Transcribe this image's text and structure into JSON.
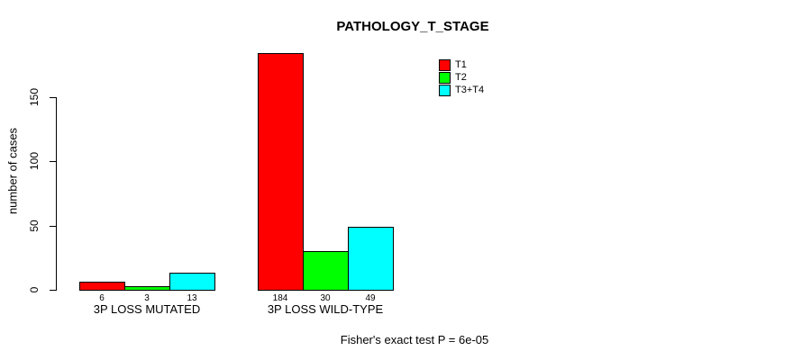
{
  "chart_data": {
    "type": "bar",
    "title": "PATHOLOGY_T_STAGE",
    "xlabel": "",
    "ylabel": "number of cases",
    "categories": [
      "3P LOSS MUTATED",
      "3P LOSS WILD-TYPE"
    ],
    "series": [
      {
        "name": "T1",
        "color": "#ff0000",
        "values": [
          6,
          184
        ]
      },
      {
        "name": "T2",
        "color": "#00ff00",
        "values": [
          3,
          30
        ]
      },
      {
        "name": "T3+T4",
        "color": "#00ffff",
        "values": [
          13,
          49
        ]
      }
    ],
    "yticks": [
      0,
      50,
      100,
      150
    ],
    "ylim": [
      0,
      150
    ],
    "grid": false,
    "legend_position": "top-right",
    "bar_value_labels_shown": true,
    "annotation": "Fisher's exact test P = 6e-05"
  }
}
